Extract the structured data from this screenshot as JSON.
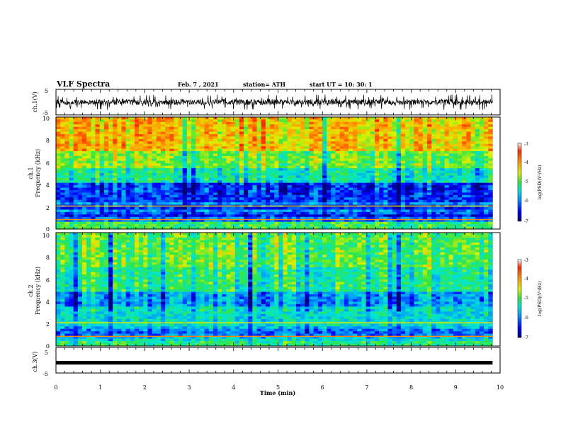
{
  "header": {
    "title": "VLF Spectra",
    "date": "Feb. 7 , 2021",
    "station": "station= ATH",
    "start": "start  UT =   10: 30: 1"
  },
  "chart_data": {
    "type": "heatmap",
    "xlabel": "Time  (min)",
    "xlim": [
      0,
      10
    ],
    "xticks": [
      "0",
      "1",
      "2",
      "3",
      "4",
      "5",
      "6",
      "7",
      "8",
      "9",
      "10"
    ],
    "time_data_end_min": 9.83,
    "panels": [
      {
        "id": "ch1-waveform",
        "type": "line",
        "ylabel": "ch.1(V)",
        "ylim": [
          -5,
          5
        ],
        "yticks": [
          "5",
          "-5"
        ]
      },
      {
        "id": "ch1-spectrogram",
        "type": "heatmap",
        "ylabel_line1": "ch.1",
        "ylabel_line2": "Frequency  (kHz)",
        "ylim": [
          0,
          10
        ],
        "yticks": [
          "0",
          "2",
          "4",
          "6",
          "8",
          "10"
        ],
        "colorbar": {
          "label": "log(PSD)(V²/Hz)",
          "range": [
            -7,
            -3
          ],
          "ticks": [
            "-3",
            "-4",
            "-5",
            "-6",
            "-7"
          ]
        }
      },
      {
        "id": "ch2-spectrogram",
        "type": "heatmap",
        "ylabel_line1": "ch.2",
        "ylabel_line2": "Frequency  (kHz)",
        "ylim": [
          0,
          10
        ],
        "yticks": [
          "0",
          "2",
          "4",
          "6",
          "8",
          "10"
        ],
        "colorbar": {
          "label": "log(PSD)(V²/Hz)",
          "range": [
            -7,
            -3
          ],
          "ticks": [
            "-3",
            "-4",
            "-5",
            "-6",
            "-7"
          ]
        }
      },
      {
        "id": "ch3-waveform",
        "type": "line",
        "ylabel": "ch.3(V)",
        "ylim": [
          -5,
          5
        ],
        "yticks": [
          "5",
          "-5"
        ],
        "constant_value": 0
      }
    ],
    "colormap": [
      "#000078",
      "#0000ff",
      "#0096ff",
      "#00e6d2",
      "#32e646",
      "#dcf000",
      "#ffa000",
      "#ff2800",
      "#ffffff"
    ]
  }
}
